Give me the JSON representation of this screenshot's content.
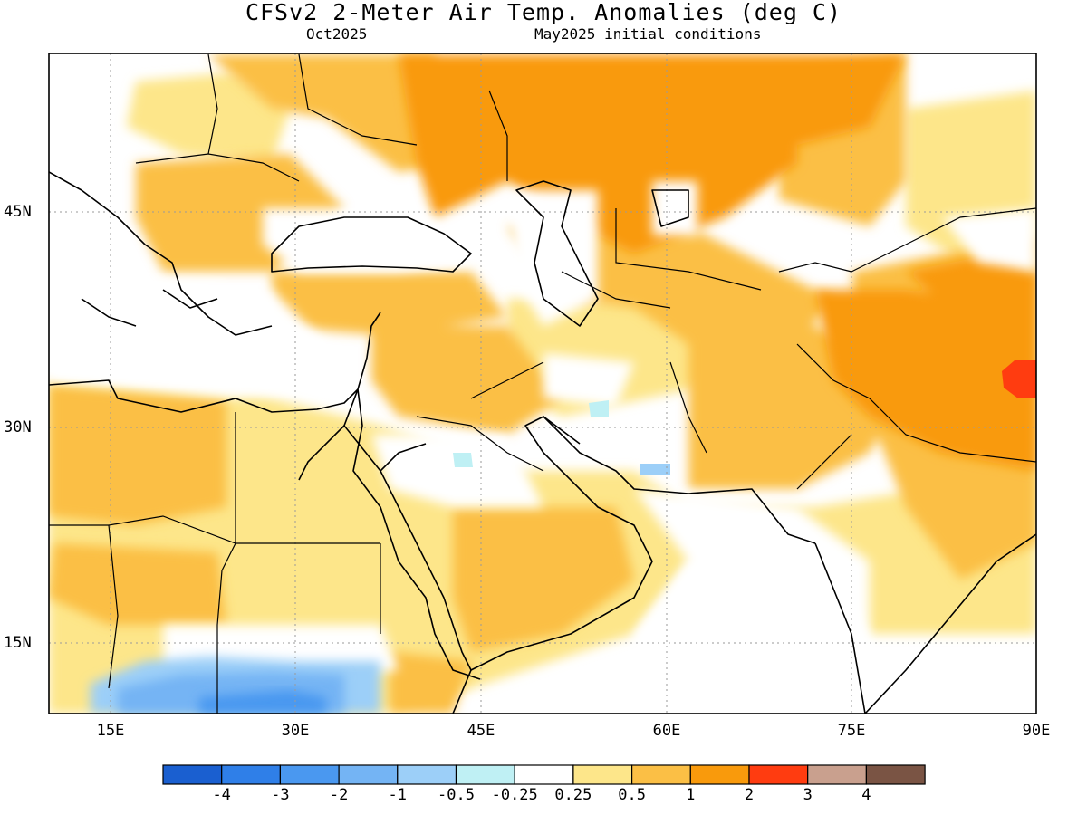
{
  "title": "CFSv2 2-Meter Air Temp. Anomalies (deg C)",
  "subtitle_left": "Oct2025",
  "subtitle_right": "May2025 initial conditions",
  "map": {
    "lon_range": [
      10,
      90
    ],
    "lat_range": [
      10,
      57
    ],
    "x_ticks": [
      "15E",
      "30E",
      "45E",
      "60E",
      "75E",
      "90E"
    ],
    "y_ticks": [
      "45N",
      "30N",
      "15N"
    ],
    "grid": "dotted"
  },
  "colorbar": {
    "colors": [
      "#1a5fd0",
      "#2f7fe8",
      "#4a98f0",
      "#74b4f4",
      "#9ccff8",
      "#bff0f4",
      "#ffffff",
      "#fde68a",
      "#fbbf45",
      "#f99a0c",
      "#ff3c10",
      "#c9a08e",
      "#7a5444"
    ],
    "labels": [
      "-4",
      "-3",
      "-2",
      "-1",
      "-0.5",
      "-0.25",
      "0.25",
      "0.5",
      "1",
      "2",
      "3",
      "4"
    ]
  }
}
